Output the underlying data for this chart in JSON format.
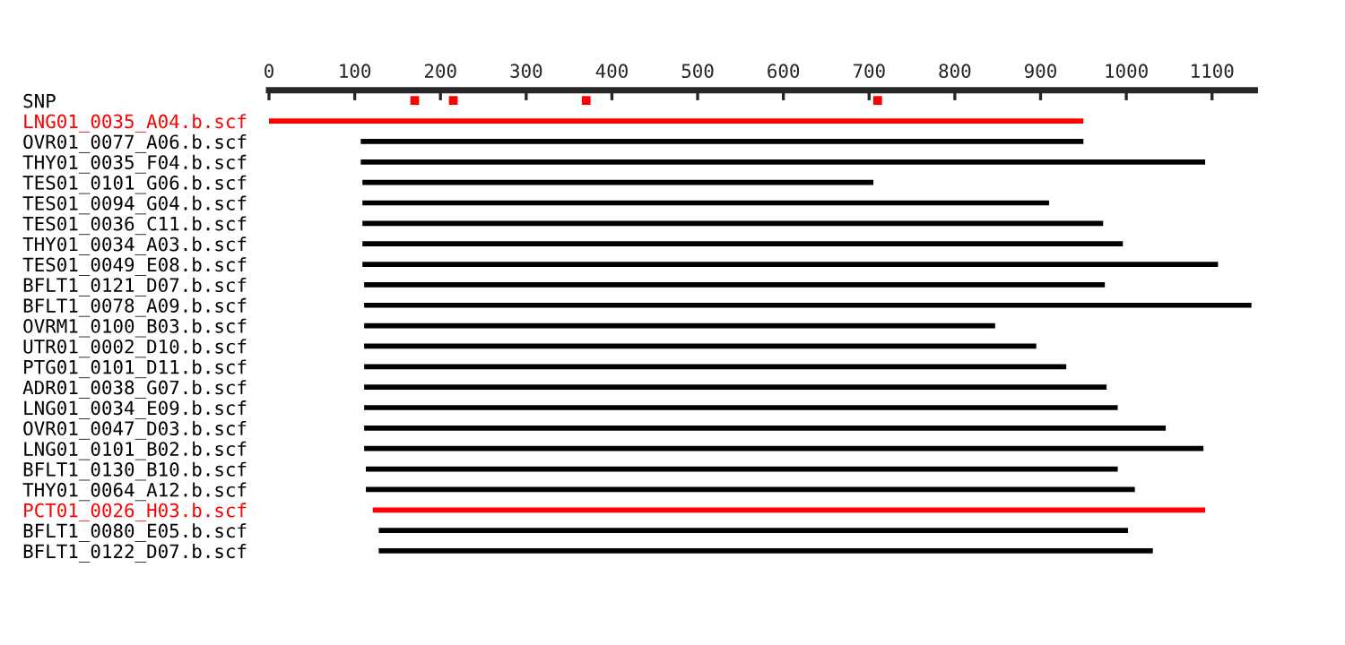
{
  "chart_data": {
    "type": "bar",
    "orientation": "horizontal",
    "categories": [
      "SNP",
      "LNG01_0035_A04.b.scf",
      "OVR01_0077_A06.b.scf",
      "THY01_0035_F04.b.scf",
      "TES01_0101_G06.b.scf",
      "TES01_0094_G04.b.scf",
      "TES01_0036_C11.b.scf",
      "THY01_0034_A03.b.scf",
      "TES01_0049_E08.b.scf",
      "BFLT1_0121_D07.b.scf",
      "BFLT1_0078_A09.b.scf",
      "OVRM1_0100_B03.b.scf",
      "UTR01_0002_D10.b.scf",
      "PTG01_0101_D11.b.scf",
      "ADR01_0038_G07.b.scf",
      "LNG01_0034_E09.b.scf",
      "OVR01_0047_D03.b.scf",
      "LNG01_0101_B02.b.scf",
      "BFLT1_0130_B10.b.scf",
      "THY01_0064_A12.b.scf",
      "PCT01_0026_H03.b.scf",
      "BFLT1_0080_E05.b.scf",
      "BFLT1_0122_D07.b.scf"
    ],
    "series": [
      {
        "base": [
          null,
          0,
          107,
          107,
          109,
          109,
          109,
          109,
          109,
          111,
          111,
          111,
          111,
          111,
          111,
          111,
          111,
          111,
          113,
          113,
          121,
          128,
          128
        ],
        "values": [
          null,
          950,
          843,
          985,
          596,
          801,
          864,
          887,
          998,
          864,
          1035,
          736,
          784,
          819,
          866,
          879,
          935,
          979,
          877,
          897,
          971,
          874,
          903
        ],
        "colors": [
          "#000000",
          "#ff0000",
          "#000000",
          "#000000",
          "#000000",
          "#000000",
          "#000000",
          "#000000",
          "#000000",
          "#000000",
          "#000000",
          "#000000",
          "#000000",
          "#000000",
          "#000000",
          "#000000",
          "#000000",
          "#000000",
          "#000000",
          "#000000",
          "#ff0000",
          "#000000",
          "#000000"
        ]
      },
      {
        "type": "scatter",
        "color": "#ff0000",
        "marker": "square",
        "x": [
          "SNP",
          "SNP",
          "SNP",
          "SNP"
        ],
        "values": [
          170,
          215,
          370,
          710
        ]
      }
    ],
    "xlim": [
      0,
      1150
    ],
    "xticks": [
      0,
      100,
      200,
      300,
      400,
      500,
      600,
      700,
      800,
      900,
      1000,
      1100
    ],
    "grid": false
  }
}
